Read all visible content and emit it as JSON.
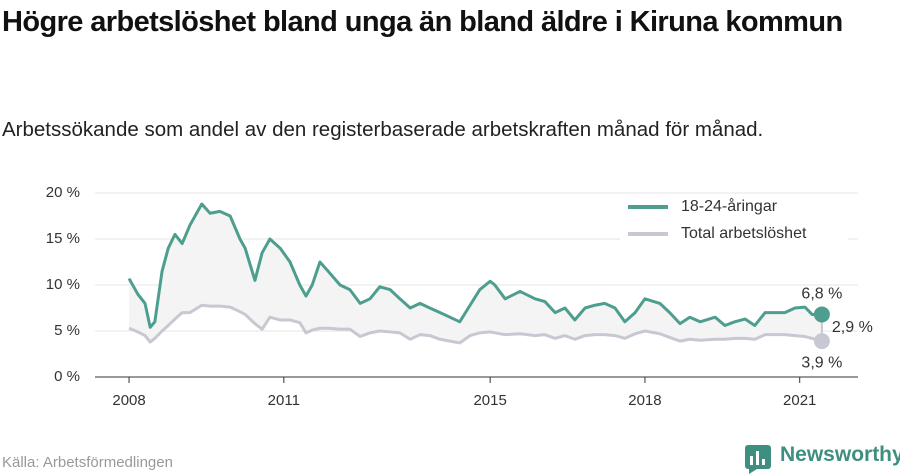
{
  "chart_data": {
    "type": "line",
    "title": "Högre arbetslöshet bland unga än bland äldre i Kiruna kommun",
    "subtitle": "Arbetssökande som andel av den registerbaserade arbetskraften månad för månad.",
    "source": "Källa: Arbetsförmedlingen",
    "brand": "Newsworthy",
    "x": [
      2008.0,
      2008.17,
      2008.31,
      2008.41,
      2008.5,
      2008.64,
      2008.76,
      2008.89,
      2009.03,
      2009.18,
      2009.41,
      2009.57,
      2009.76,
      2009.96,
      2010.15,
      2010.25,
      2010.44,
      2010.58,
      2010.73,
      2010.93,
      2011.12,
      2011.31,
      2011.43,
      2011.55,
      2011.7,
      2011.86,
      2012.09,
      2012.28,
      2012.48,
      2012.67,
      2012.86,
      2013.06,
      2013.25,
      2013.45,
      2013.64,
      2013.83,
      2014.03,
      2014.22,
      2014.41,
      2014.61,
      2014.8,
      2015.0,
      2015.09,
      2015.29,
      2015.58,
      2015.87,
      2016.06,
      2016.26,
      2016.45,
      2016.64,
      2016.84,
      2017.03,
      2017.22,
      2017.42,
      2017.61,
      2017.81,
      2018.0,
      2018.29,
      2018.48,
      2018.68,
      2018.87,
      2019.07,
      2019.36,
      2019.55,
      2019.74,
      2019.94,
      2020.13,
      2020.33,
      2020.52,
      2020.71,
      2020.91,
      2021.1,
      2021.24,
      2021.43
    ],
    "xlim": [
      2007.34,
      2022.13
    ],
    "xticks": [
      2008,
      2011,
      2015,
      2018,
      2021
    ],
    "ylim": [
      0,
      20
    ],
    "yticks": [
      {
        "value": 0,
        "label": "0 %"
      },
      {
        "value": 5,
        "label": "5 %"
      },
      {
        "value": 10,
        "label": "10 %"
      },
      {
        "value": 15,
        "label": "15 %"
      },
      {
        "value": 20,
        "label": "20 %"
      }
    ],
    "grid": true,
    "legend": "top-right",
    "series": [
      {
        "name": "18-24-åringar",
        "color": "#4e9e8f",
        "end_label": "6,8 %",
        "values": [
          10.7,
          9,
          8,
          5.4,
          6,
          11.5,
          14,
          15.5,
          14.5,
          16.5,
          18.8,
          17.8,
          18,
          17.5,
          15,
          14,
          10.5,
          13.5,
          15,
          14,
          12.5,
          10,
          8.8,
          10,
          12.5,
          11.5,
          10,
          9.5,
          8,
          8.5,
          9.8,
          9.5,
          8.5,
          7.5,
          8,
          7.5,
          7,
          6.5,
          6,
          7.8,
          9.5,
          10.4,
          10,
          8.5,
          9.3,
          8.5,
          8.2,
          7,
          7.5,
          6.2,
          7.5,
          7.8,
          8,
          7.5,
          6,
          7,
          8.5,
          8,
          7,
          5.8,
          6.5,
          6,
          6.5,
          5.6,
          6,
          6.3,
          5.6,
          7,
          7,
          7,
          7.5,
          7.6,
          6.8,
          6.8
        ]
      },
      {
        "name": "Total arbetslöshet",
        "color": "#c8c8d2",
        "end_label": "3,9 %",
        "values": [
          5.3,
          4.9,
          4.5,
          3.8,
          4.2,
          5,
          5.6,
          6.3,
          7,
          7,
          7.8,
          7.7,
          7.7,
          7.6,
          7.1,
          6.8,
          5.8,
          5.2,
          6.5,
          6.2,
          6.2,
          5.9,
          4.8,
          5.1,
          5.3,
          5.3,
          5.2,
          5.2,
          4.4,
          4.8,
          5,
          4.9,
          4.8,
          4.1,
          4.6,
          4.5,
          4.1,
          3.9,
          3.7,
          4.5,
          4.8,
          4.9,
          4.8,
          4.6,
          4.7,
          4.5,
          4.6,
          4.2,
          4.5,
          4.1,
          4.5,
          4.6,
          4.6,
          4.5,
          4.2,
          4.7,
          5,
          4.7,
          4.3,
          3.9,
          4.1,
          4,
          4.1,
          4.1,
          4.2,
          4.2,
          4.1,
          4.6,
          4.6,
          4.6,
          4.5,
          4.4,
          4.2,
          3.9
        ]
      }
    ],
    "difference": {
      "value": 2.9,
      "label": "2,9 %"
    }
  }
}
